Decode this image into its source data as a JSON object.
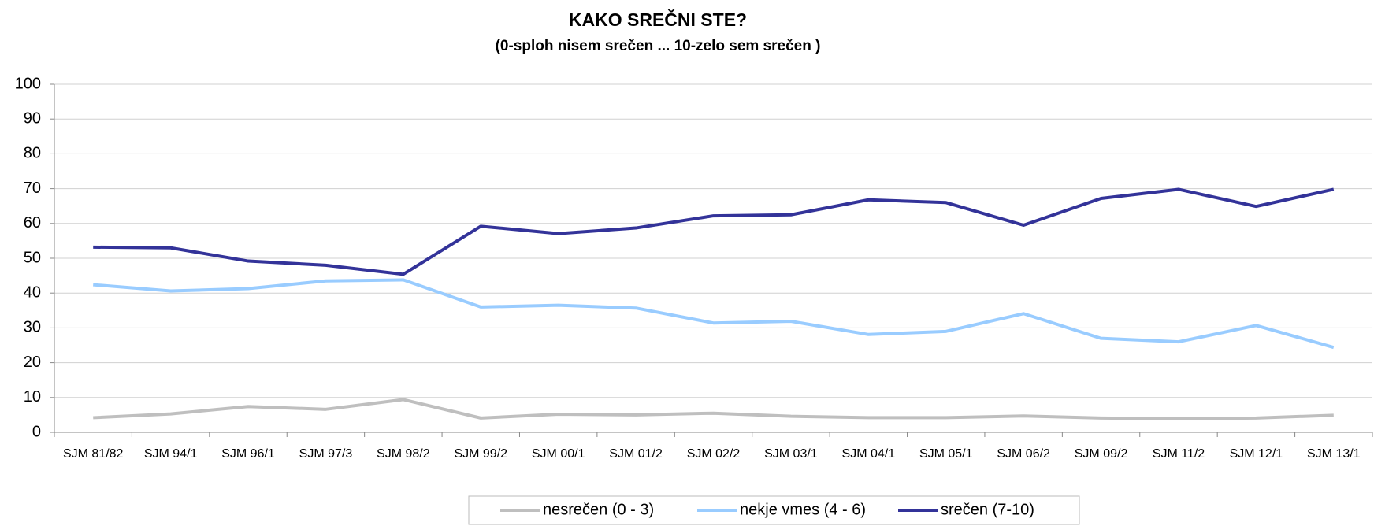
{
  "chart_data": {
    "type": "line",
    "title": "KAKO SREČNI STE?",
    "subtitle": "(0-sploh nisem srečen ... 10-zelo sem srečen )",
    "categories": [
      "SJM 81/82",
      "SJM 94/1",
      "SJM 96/1",
      "SJM 97/3",
      "SJM 98/2",
      "SJM 99/2",
      "SJM 00/1",
      "SJM 01/2",
      "SJM 02/2",
      "SJM 03/1",
      "SJM 04/1",
      "SJM 05/1",
      "SJM 06/2",
      "SJM 09/2",
      "SJM 11/2",
      "SJM 12/1",
      "SJM 13/1"
    ],
    "series": [
      {
        "name": "nesrečen (0 - 3)",
        "color": "#bfbfbf",
        "values": [
          4.2,
          5.3,
          7.4,
          6.6,
          9.4,
          4.1,
          5.2,
          5.0,
          5.5,
          4.6,
          4.2,
          4.2,
          4.7,
          4.1,
          3.9,
          4.1,
          4.9
        ]
      },
      {
        "name": "nekje vmes (4 - 6)",
        "color": "#99ccff",
        "values": [
          42.4,
          40.6,
          41.3,
          43.5,
          43.8,
          36.0,
          36.5,
          35.7,
          31.4,
          31.9,
          28.1,
          29.0,
          34.1,
          27.0,
          26.0,
          30.7,
          24.4
        ]
      },
      {
        "name": "srečen (7-10)",
        "color": "#333399",
        "values": [
          53.2,
          53.0,
          49.2,
          48.0,
          45.4,
          59.2,
          57.1,
          58.7,
          62.2,
          62.5,
          66.8,
          66.0,
          59.5,
          67.2,
          69.8,
          64.9,
          69.8
        ]
      }
    ],
    "ylim": [
      0,
      100
    ],
    "yticks": [
      0,
      10,
      20,
      30,
      40,
      50,
      60,
      70,
      80,
      90,
      100
    ],
    "grid": true,
    "legend": "bottom"
  }
}
